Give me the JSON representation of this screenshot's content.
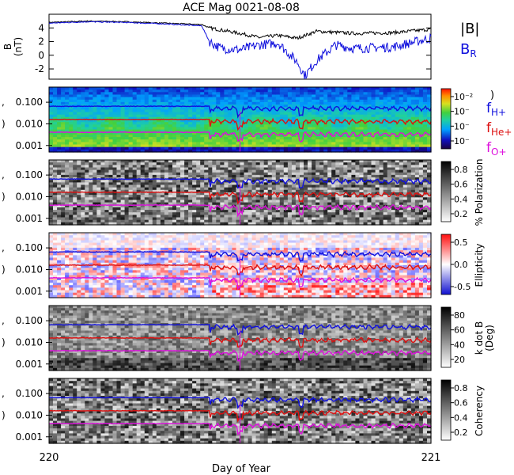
{
  "chart_data": [
    {
      "type": "line",
      "title": "ACE Mag 0021-08-08",
      "ylabel": "B (nT)",
      "ylabel_main": "B",
      "ylabel_unit": "(nT)",
      "ylim": [
        -3.5,
        6
      ],
      "yticks": [
        "4",
        "2",
        "0",
        "-2"
      ],
      "ytick_values": [
        4,
        2,
        0,
        -2
      ],
      "series": [
        {
          "name": "|B|",
          "color": "#000000",
          "x": [
            220.0,
            220.1,
            220.2,
            220.3,
            220.4,
            220.42,
            220.5,
            220.55,
            220.6,
            220.65,
            220.7,
            220.8,
            220.9,
            221.0
          ],
          "values": [
            4.8,
            5.0,
            4.9,
            4.7,
            4.5,
            4.0,
            3.2,
            2.6,
            2.9,
            2.5,
            3.5,
            3.2,
            3.3,
            3.8
          ]
        },
        {
          "name": "B_R",
          "color": "#1010dd",
          "x": [
            220.0,
            220.1,
            220.2,
            220.3,
            220.4,
            220.42,
            220.45,
            220.5,
            220.55,
            220.6,
            220.65,
            220.67,
            220.7,
            220.75,
            220.8,
            220.9,
            221.0
          ],
          "values": [
            4.7,
            4.9,
            4.8,
            4.6,
            4.3,
            2.0,
            1.0,
            0.8,
            1.5,
            1.8,
            -1.0,
            -3.0,
            -0.8,
            1.5,
            1.0,
            1.2,
            2.5
          ]
        }
      ],
      "legend": [
        {
          "text": "|B|",
          "color": "#000000"
        },
        {
          "text": "B",
          "sub": "R",
          "color": "#1010dd"
        }
      ]
    },
    {
      "type": "heatmap",
      "ylabel": "Frequency (Hz)",
      "yticks": [
        "0.100",
        "0.010",
        "0.001"
      ],
      "ytick_values": [
        0.1,
        0.01,
        0.001
      ],
      "ylim": [
        0.0005,
        0.5
      ],
      "yscale": "log",
      "colorbar_ticks": [
        "10⁻²",
        "10⁻",
        "10⁻",
        "10⁻"
      ],
      "colorbar_title": ")",
      "colormap": "rainbow",
      "lines": [
        {
          "name": "f_H+",
          "color": "#1010dd",
          "base": 0.065
        },
        {
          "name": "f_He+",
          "color": "#dd1010",
          "base": 0.016
        },
        {
          "name": "f_O+",
          "color": "#dd10dd",
          "base": 0.0041
        }
      ],
      "legend": [
        {
          "text": "f",
          "sub": "H+",
          "color": "#1010dd"
        },
        {
          "text": "f",
          "sub": "He+",
          "color": "#dd1010"
        },
        {
          "text": "f",
          "sub": "O+",
          "color": "#dd10dd"
        }
      ]
    },
    {
      "type": "heatmap",
      "ylabel": "Frequency (Hz)",
      "yticks": [
        "0.100",
        "0.010",
        "0.001"
      ],
      "ytick_values": [
        0.1,
        0.01,
        0.001
      ],
      "yscale": "log",
      "colorbar_label": "% Polarization",
      "colorbar_ticks": [
        "0.8",
        "0.6",
        "0.4",
        "0.2"
      ],
      "colormap": "gray"
    },
    {
      "type": "heatmap",
      "ylabel": "Frequency (Hz)",
      "yticks": [
        "0.100",
        "0.010",
        "0.001"
      ],
      "ytick_values": [
        0.1,
        0.01,
        0.001
      ],
      "yscale": "log",
      "colorbar_label": "Ellipticity",
      "colorbar_ticks": [
        "0.5",
        "0.0",
        "-0.5"
      ],
      "colormap": "blue-white-red"
    },
    {
      "type": "heatmap",
      "ylabel": "Frequency (Hz)",
      "yticks": [
        "0.100",
        "0.010",
        "0.001"
      ],
      "ytick_values": [
        0.1,
        0.01,
        0.001
      ],
      "yscale": "log",
      "colorbar_label": "k dot B",
      "colorbar_label_unit": "(Deg)",
      "colorbar_ticks": [
        "80",
        "60",
        "40",
        "20"
      ],
      "colormap": "gray"
    },
    {
      "type": "heatmap",
      "ylabel": "Frequency (Hz)",
      "yticks": [
        "0.100",
        "0.010",
        "0.001"
      ],
      "ytick_values": [
        0.1,
        0.01,
        0.001
      ],
      "yscale": "log",
      "colorbar_label": "Coherency",
      "colorbar_ticks": [
        "0.8",
        "0.6",
        "0.4",
        "0.2"
      ],
      "colormap": "gray"
    }
  ],
  "x_axis": {
    "label": "Day of Year",
    "xlim": [
      220,
      221
    ],
    "ticks": [
      "220",
      "221"
    ],
    "tick_values": [
      220,
      221
    ]
  }
}
